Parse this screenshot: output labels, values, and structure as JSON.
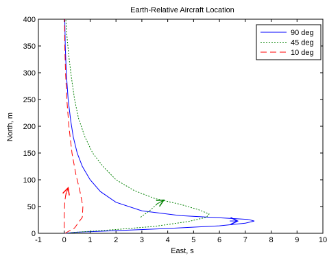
{
  "chart_data": {
    "type": "line",
    "title": "Earth-Relative Aircraft Location",
    "xlabel": "East, s",
    "ylabel": "North, m",
    "xlim": [
      -1,
      10
    ],
    "ylim": [
      0,
      400
    ],
    "xticks": [
      "-1",
      "0",
      "1",
      "2",
      "3",
      "4",
      "5",
      "6",
      "7",
      "8",
      "9",
      "10"
    ],
    "yticks": [
      "0",
      "50",
      "100",
      "150",
      "200",
      "250",
      "300",
      "350",
      "400"
    ],
    "grid": false,
    "legend_position": "top-right",
    "series": [
      {
        "name": "90 deg",
        "color": "#0000ff",
        "style": "solid",
        "points": [
          [
            0.02,
            0
          ],
          [
            0.5,
            2
          ],
          [
            2,
            5
          ],
          [
            4,
            9
          ],
          [
            6,
            14
          ],
          [
            7,
            19
          ],
          [
            7.35,
            23
          ],
          [
            7.1,
            26
          ],
          [
            6,
            29
          ],
          [
            4.5,
            33
          ],
          [
            3,
            42
          ],
          [
            2,
            58
          ],
          [
            1.4,
            78
          ],
          [
            1.0,
            100
          ],
          [
            0.7,
            125
          ],
          [
            0.5,
            150
          ],
          [
            0.35,
            180
          ],
          [
            0.25,
            210
          ],
          [
            0.15,
            250
          ],
          [
            0.08,
            300
          ],
          [
            0.04,
            350
          ],
          [
            0.02,
            400
          ]
        ],
        "arrow": [
          [
            6.4,
            23
          ],
          [
            6.7,
            23
          ]
        ]
      },
      {
        "name": "45 deg",
        "color": "#008000",
        "style": "dotted",
        "points": [
          [
            0.05,
            0
          ],
          [
            0.5,
            2
          ],
          [
            2,
            7
          ],
          [
            3.5,
            13
          ],
          [
            4.8,
            22
          ],
          [
            5.5,
            30
          ],
          [
            5.6,
            36
          ],
          [
            5.2,
            44
          ],
          [
            4.5,
            54
          ],
          [
            3.5,
            65
          ],
          [
            2.7,
            80
          ],
          [
            2.0,
            100
          ],
          [
            1.5,
            125
          ],
          [
            1.1,
            150
          ],
          [
            0.8,
            180
          ],
          [
            0.55,
            215
          ],
          [
            0.4,
            250
          ],
          [
            0.28,
            290
          ],
          [
            0.18,
            330
          ],
          [
            0.1,
            370
          ],
          [
            0.06,
            400
          ]
        ],
        "extra": [
          [
            2.95,
            30
          ],
          [
            3.3,
            42
          ],
          [
            3.6,
            55
          ]
        ],
        "arrow": [
          [
            3.55,
            54
          ],
          [
            3.85,
            62
          ]
        ]
      },
      {
        "name": "10 deg",
        "color": "#ff0000",
        "style": "dashed",
        "points": [
          [
            0.03,
            0
          ],
          [
            0.4,
            10
          ],
          [
            0.7,
            30
          ],
          [
            0.72,
            50
          ],
          [
            0.6,
            80
          ],
          [
            0.45,
            110
          ],
          [
            0.3,
            150
          ],
          [
            0.18,
            200
          ],
          [
            0.1,
            250
          ],
          [
            0.05,
            300
          ],
          [
            0.02,
            350
          ],
          [
            0.01,
            400
          ]
        ],
        "extra": [
          [
            0.0,
            10
          ],
          [
            0.0,
            35
          ],
          [
            0.02,
            60
          ],
          [
            0.08,
            78
          ]
        ],
        "arrow": [
          [
            0.05,
            70
          ],
          [
            0.15,
            85
          ]
        ]
      }
    ]
  }
}
